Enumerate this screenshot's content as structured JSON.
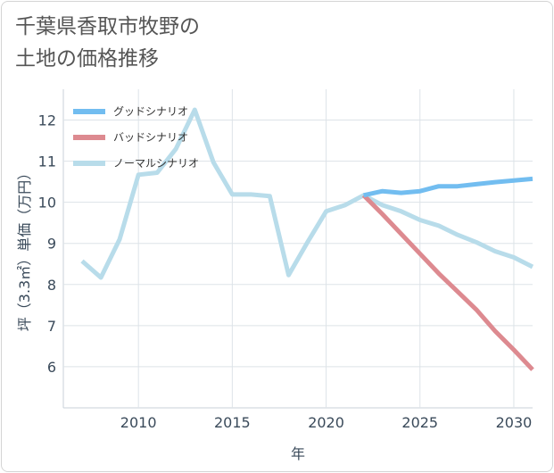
{
  "title": "千葉県香取市牧野の\n土地の価格推移",
  "chart_data": {
    "type": "line",
    "xlabel": "年",
    "ylabel": "坪（3.3㎡）単価（万円）",
    "xlim": [
      2006,
      2031
    ],
    "ylim": [
      5,
      12.75
    ],
    "xticks": [
      2010,
      2015,
      2020,
      2025,
      2030
    ],
    "yticks": [
      6,
      7,
      8,
      9,
      10,
      11,
      12
    ],
    "grid": true,
    "legend_position": "top-left",
    "series": [
      {
        "name": "グッドシナリオ",
        "color": "#72bdf0",
        "x": [
          2022,
          2023,
          2024,
          2025,
          2026,
          2027,
          2028,
          2029,
          2030,
          2031
        ],
        "y": [
          10.17,
          10.27,
          10.23,
          10.27,
          10.39,
          10.39,
          10.44,
          10.49,
          10.53,
          10.57
        ]
      },
      {
        "name": "バッドシナリオ",
        "color": "#dd8a90",
        "x": [
          2022,
          2023,
          2024,
          2025,
          2026,
          2027,
          2028,
          2029,
          2030,
          2031
        ],
        "y": [
          10.17,
          9.71,
          9.23,
          8.75,
          8.27,
          7.83,
          7.39,
          6.87,
          6.41,
          5.93
        ]
      },
      {
        "name": "ノーマルシナリオ",
        "color": "#b8dcea",
        "x": [
          2007,
          2008,
          2009,
          2010,
          2011,
          2012,
          2013,
          2014,
          2015,
          2016,
          2017,
          2018,
          2019,
          2020,
          2021,
          2022,
          2023,
          2024,
          2025,
          2026,
          2027,
          2028,
          2029,
          2030,
          2031
        ],
        "y": [
          8.57,
          8.17,
          9.1,
          10.67,
          10.72,
          11.3,
          12.25,
          10.97,
          10.19,
          10.19,
          10.15,
          8.23,
          9.02,
          9.78,
          9.93,
          10.17,
          9.93,
          9.78,
          9.57,
          9.43,
          9.21,
          9.03,
          8.81,
          8.66,
          8.43
        ]
      }
    ]
  }
}
